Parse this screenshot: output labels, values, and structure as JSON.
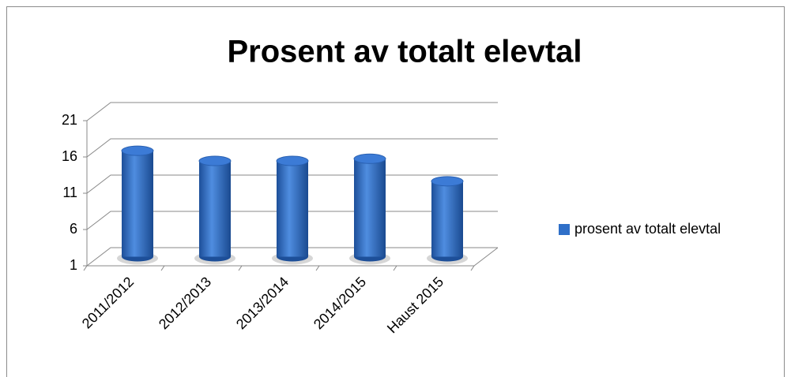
{
  "chart_data": {
    "type": "bar3d",
    "title": "Prosent av totalt elevtal",
    "categories": [
      "2011/2012",
      "2012/2013",
      "2013/2014",
      "2014/2015",
      "Haust 2015"
    ],
    "series": [
      {
        "name": "prosent av totalt elevtal",
        "color": "#2f6fc8",
        "values": [
          15.6,
          14.2,
          14.2,
          14.5,
          11.4
        ]
      }
    ],
    "ylim": [
      1,
      21
    ],
    "yticks": [
      1,
      6,
      11,
      16,
      21
    ],
    "grid": true,
    "legend": "right"
  }
}
